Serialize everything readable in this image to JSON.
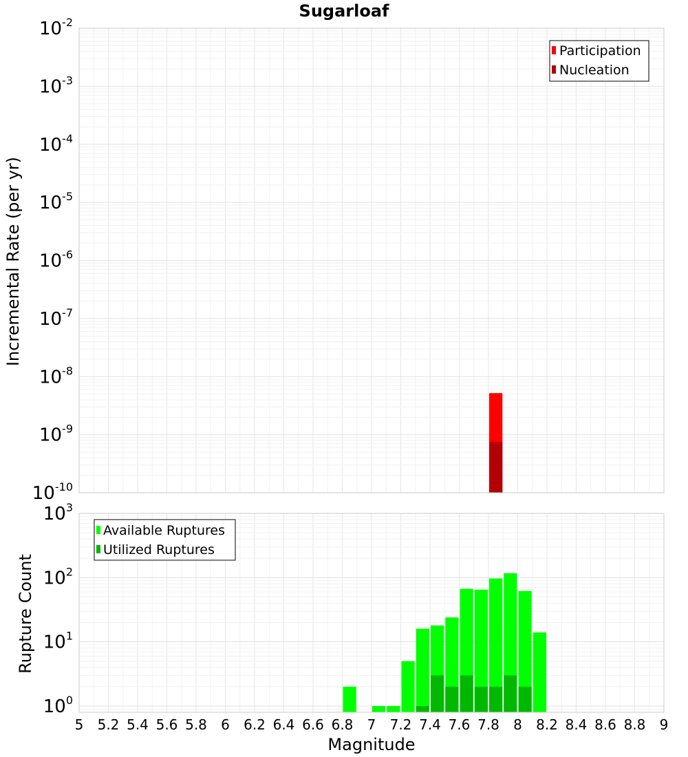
{
  "title": "Sugarloaf",
  "xlabel": "Magnitude",
  "chart_data": [
    {
      "type": "bar",
      "panel": "top",
      "title": "Sugarloaf",
      "xlabel": "Magnitude",
      "ylabel": "Incremental Rate (per yr)",
      "yscale": "log",
      "xlim": [
        5,
        9
      ],
      "ylim": [
        1e-10,
        0.01
      ],
      "bar_width": 0.1,
      "legend_position": "top-right",
      "grid": true,
      "series": [
        {
          "name": "Participation",
          "color": "#ff0000",
          "x": [
            7.85
          ],
          "values": [
            5.2e-09
          ]
        },
        {
          "name": "Nucleation",
          "color": "#b30000",
          "x": [
            7.85
          ],
          "values": [
            7.5e-10
          ]
        }
      ],
      "yticks": [
        {
          "base": "10",
          "exp": "-10",
          "value": 1e-10
        },
        {
          "base": "10",
          "exp": "-9",
          "value": 1e-09
        },
        {
          "base": "10",
          "exp": "-8",
          "value": 1e-08
        },
        {
          "base": "10",
          "exp": "-7",
          "value": 1e-07
        },
        {
          "base": "10",
          "exp": "-6",
          "value": 1e-06
        },
        {
          "base": "10",
          "exp": "-5",
          "value": 1e-05
        },
        {
          "base": "10",
          "exp": "-4",
          "value": 0.0001
        },
        {
          "base": "10",
          "exp": "-3",
          "value": 0.001
        },
        {
          "base": "10",
          "exp": "-2",
          "value": 0.01
        }
      ]
    },
    {
      "type": "bar",
      "panel": "bottom",
      "ylabel": "Rupture Count",
      "xlabel": "Magnitude",
      "yscale": "log",
      "xlim": [
        5,
        9
      ],
      "ylim": [
        0.8,
        1000
      ],
      "bar_width": 0.1,
      "legend_position": "top-left",
      "grid": true,
      "series": [
        {
          "name": "Available Ruptures",
          "color": "#00ff00",
          "x": [
            6.85,
            7.05,
            7.15,
            7.25,
            7.35,
            7.45,
            7.55,
            7.65,
            7.75,
            7.85,
            7.95,
            8.05,
            8.15
          ],
          "values": [
            2,
            1,
            1,
            5,
            16,
            18,
            24,
            67,
            65,
            97,
            117,
            62,
            14
          ]
        },
        {
          "name": "Utilized Ruptures",
          "color": "#00b800",
          "x": [
            7.35,
            7.45,
            7.55,
            7.65,
            7.75,
            7.85,
            7.95,
            8.05
          ],
          "values": [
            1,
            3,
            2,
            3,
            2,
            2,
            3,
            2
          ]
        }
      ],
      "yticks": [
        {
          "base": "10",
          "exp": "0",
          "value": 1
        },
        {
          "base": "10",
          "exp": "1",
          "value": 10
        },
        {
          "base": "10",
          "exp": "2",
          "value": 100
        },
        {
          "base": "10",
          "exp": "3",
          "value": 1000
        }
      ]
    }
  ],
  "xticks": [
    "5",
    "5.2",
    "5.4",
    "5.6",
    "5.8",
    "6",
    "6.2",
    "6.4",
    "6.6",
    "6.8",
    "7",
    "7.2",
    "7.4",
    "7.6",
    "7.8",
    "8",
    "8.2",
    "8.4",
    "8.6",
    "8.8",
    "9"
  ]
}
